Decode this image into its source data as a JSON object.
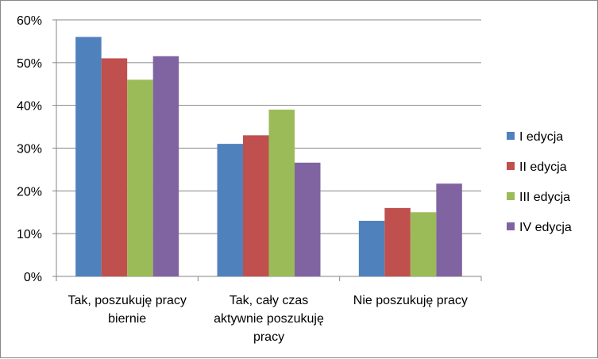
{
  "chart_data": {
    "type": "bar",
    "title": "",
    "xlabel": "",
    "ylabel": "",
    "categories": [
      [
        "Tak, poszukuję pracy",
        "biernie"
      ],
      [
        "Tak, cały czas",
        "aktywnie poszukuję",
        "pracy"
      ],
      [
        "Nie poszukuję pracy"
      ]
    ],
    "series": [
      {
        "name": "I edycja",
        "color": "#4F81BD",
        "values": [
          56,
          31,
          13
        ]
      },
      {
        "name": "II edycja",
        "color": "#C0504D",
        "values": [
          51,
          33,
          16
        ]
      },
      {
        "name": "III edycja",
        "color": "#9BBB59",
        "values": [
          46,
          39,
          15
        ]
      },
      {
        "name": "IV edycja",
        "color": "#8064A2",
        "values": [
          51.5,
          26.6,
          21.7
        ]
      }
    ],
    "ylim": [
      0,
      60
    ],
    "yticks": [
      "0%",
      "10%",
      "20%",
      "30%",
      "40%",
      "50%",
      "60%"
    ],
    "grid": true,
    "legend": "right"
  }
}
